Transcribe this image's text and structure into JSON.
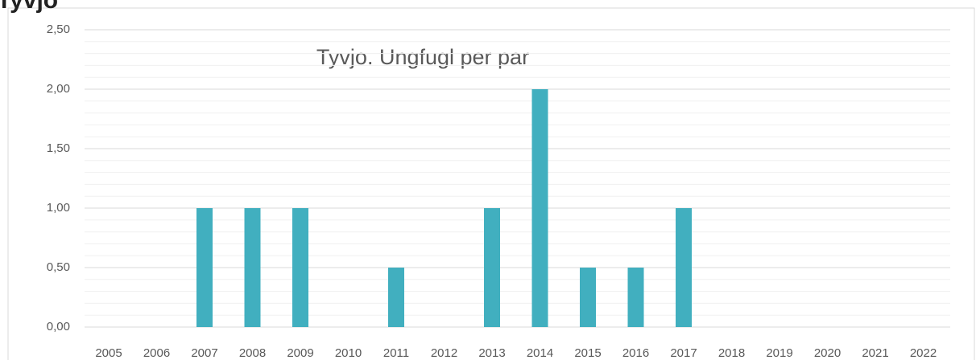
{
  "heading": "Tyvjo",
  "chart_data": {
    "type": "bar",
    "title": "Tyvjo. Ungfugl per par",
    "categories": [
      "2005",
      "2006",
      "2007",
      "2008",
      "2009",
      "2010",
      "2011",
      "2012",
      "2013",
      "2014",
      "2015",
      "2016",
      "2017",
      "2018",
      "2019",
      "2020",
      "2021",
      "2022"
    ],
    "values": [
      0,
      0,
      1,
      1,
      1,
      0,
      0.5,
      0,
      1,
      2,
      0.5,
      0.5,
      1,
      0,
      0,
      0,
      0,
      0
    ],
    "color": "#41afbf",
    "ylim": [
      0,
      2.5
    ],
    "yticks": [
      {
        "value": 0,
        "label": "0,00"
      },
      {
        "value": 0.5,
        "label": "0,50"
      },
      {
        "value": 1,
        "label": "1,00"
      },
      {
        "value": 1.5,
        "label": "1,50"
      },
      {
        "value": 2,
        "label": "2,00"
      },
      {
        "value": 2.5,
        "label": "2,50"
      }
    ],
    "minor_yticks": [
      0.1,
      0.2,
      0.3,
      0.4,
      0.6,
      0.7,
      0.8,
      0.9,
      1.1,
      1.2,
      1.3,
      1.4,
      1.6,
      1.7,
      1.8,
      1.9,
      2.1,
      2.2,
      2.3,
      2.4
    ],
    "grid": true
  }
}
